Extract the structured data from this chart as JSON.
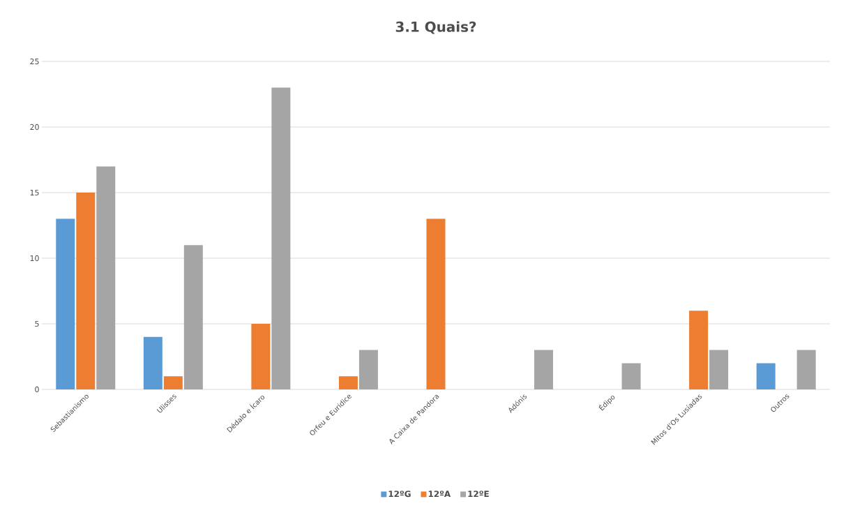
{
  "chart_data": {
    "type": "bar",
    "title": "3.1 Quais?",
    "categories": [
      "Sebastianismo",
      "Ulisses",
      "Dédalo e Ícaro",
      "Orfeu e Euridice",
      "A Caixa de Pandora",
      "Adónis",
      "Édipo",
      "Mitos d'Os Lusíadas",
      "Outros"
    ],
    "series": [
      {
        "name": "12ºG",
        "color": "#5b9bd5",
        "values": [
          13,
          4,
          0,
          0,
          0,
          0,
          0,
          0,
          2
        ]
      },
      {
        "name": "12ºA",
        "color": "#ed7d31",
        "values": [
          15,
          1,
          5,
          1,
          13,
          0,
          0,
          6,
          0
        ]
      },
      {
        "name": "12ºE",
        "color": "#a5a5a5",
        "values": [
          17,
          11,
          23,
          3,
          0,
          3,
          2,
          3,
          3
        ]
      }
    ],
    "ylim": [
      0,
      25
    ],
    "yticks": [
      0,
      5,
      10,
      15,
      20,
      25
    ],
    "grid": "y",
    "legend": "bottom"
  }
}
